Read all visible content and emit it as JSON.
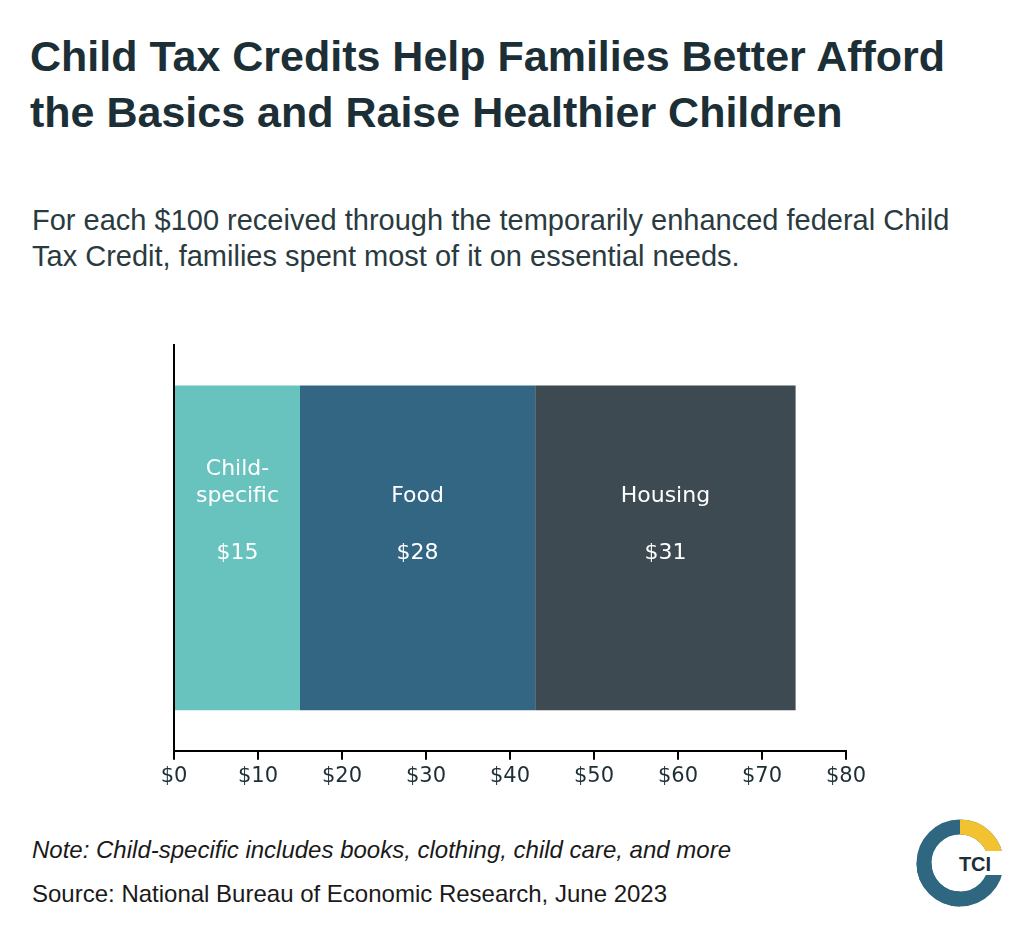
{
  "chart_data": {
    "type": "bar",
    "title": "Child Tax Credits Help Families Better Afford the Basics and Raise Healthier Children",
    "subtitle": "For each $100 received through the temporarily enhanced federal Child Tax Credit, families spent most of it on essential needs.",
    "note": "Note: Child-specific includes books, clothing, child care, and more",
    "source": "Source: National Bureau of Economic Research, June 2023",
    "logo_text": "TCI",
    "orientation": "horizontal",
    "stacked": true,
    "data_labels": true,
    "grid": false,
    "tick_labels": "x",
    "categories": [
      null
    ],
    "series": [
      {
        "name": "Child-specific",
        "color": "#68c3be",
        "values": [
          15
        ],
        "value_labels": [
          "$15"
        ]
      },
      {
        "name": "Food",
        "color": "#336683",
        "values": [
          28
        ],
        "value_labels": [
          "$28"
        ]
      },
      {
        "name": "Housing",
        "color": "#3d4a52",
        "values": [
          31
        ],
        "value_labels": [
          "$31"
        ]
      }
    ],
    "xlim": [
      0,
      80
    ],
    "xticks": [
      {
        "value": 0,
        "label": "$0"
      },
      {
        "value": 10,
        "label": "$10"
      },
      {
        "value": 20,
        "label": "$20"
      },
      {
        "value": 30,
        "label": "$30"
      },
      {
        "value": 40,
        "label": "$40"
      },
      {
        "value": 50,
        "label": "$50"
      },
      {
        "value": 60,
        "label": "$60"
      },
      {
        "value": 70,
        "label": "$70"
      },
      {
        "value": 80,
        "label": "$80"
      }
    ]
  }
}
